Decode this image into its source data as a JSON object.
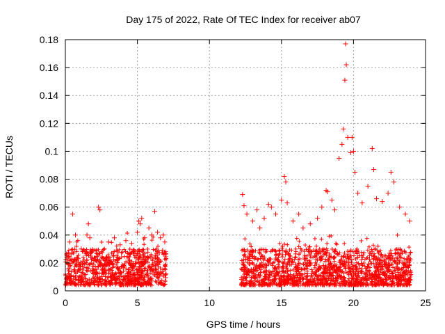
{
  "chart_data": {
    "type": "scatter",
    "title": "Day 175 of 2022, Rate Of TEC Index for receiver ab07",
    "xlabel": "GPS time / hours",
    "ylabel": "ROTI / TECUs",
    "xlim": [
      0,
      25
    ],
    "ylim": [
      0,
      0.18
    ],
    "xticks": [
      "0",
      "5",
      "10",
      "15",
      "20",
      "25"
    ],
    "yticks": [
      "0",
      "0.02",
      "0.04",
      "0.06",
      "0.08",
      "0.1",
      "0.12",
      "0.14",
      "0.16",
      "0.18"
    ],
    "grid": true,
    "marker": "+",
    "color": "#ff0000",
    "series": [
      {
        "x": [
          0.3,
          0.5,
          0.7,
          1.1,
          1.5,
          1.6,
          1.7,
          2.3,
          2.4,
          3.0,
          3.4,
          3.8,
          4.2,
          4.6,
          5.0,
          5.1,
          5.2,
          5.3,
          5.5,
          5.8,
          6.0,
          6.2,
          6.4,
          6.6,
          6.8,
          6.9,
          12.3,
          12.4,
          12.6,
          13.0,
          13.3,
          13.5,
          13.8,
          14.1,
          14.3,
          14.6,
          15.0,
          15.2,
          15.3,
          15.4,
          15.8,
          16.2,
          16.5,
          17.0,
          17.5,
          17.8,
          18.1,
          18.2,
          18.5,
          18.7,
          19.0,
          19.2,
          19.3,
          19.4,
          19.45,
          19.5,
          19.6,
          19.8,
          19.9,
          20.0,
          20.1,
          20.3,
          20.6,
          21.0,
          21.3,
          21.4,
          21.6,
          22.0,
          22.4,
          22.6,
          22.8,
          23.2,
          23.6,
          23.9
        ],
        "y": [
          0.035,
          0.055,
          0.04,
          0.03,
          0.04,
          0.048,
          0.038,
          0.06,
          0.058,
          0.035,
          0.038,
          0.033,
          0.036,
          0.034,
          0.042,
          0.05,
          0.048,
          0.052,
          0.038,
          0.045,
          0.04,
          0.057,
          0.042,
          0.038,
          0.04,
          0.035,
          0.069,
          0.061,
          0.055,
          0.05,
          0.058,
          0.045,
          0.052,
          0.062,
          0.06,
          0.055,
          0.065,
          0.082,
          0.078,
          0.063,
          0.05,
          0.055,
          0.045,
          0.048,
          0.052,
          0.06,
          0.072,
          0.071,
          0.065,
          0.058,
          0.095,
          0.105,
          0.116,
          0.151,
          0.177,
          0.162,
          0.11,
          0.099,
          0.11,
          0.1,
          0.085,
          0.07,
          0.063,
          0.075,
          0.102,
          0.087,
          0.066,
          0.064,
          0.07,
          0.085,
          0.078,
          0.06,
          0.055,
          0.05
        ]
      }
    ]
  }
}
